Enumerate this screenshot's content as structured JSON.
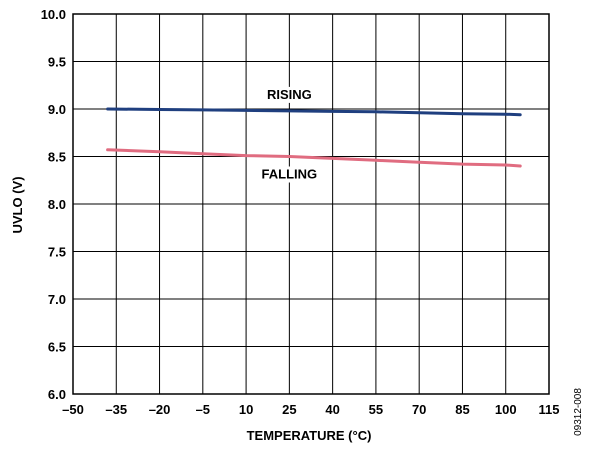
{
  "chart_data": {
    "type": "line",
    "xlabel": "TEMPERATURE (°C)",
    "ylabel": "UVLO (V)",
    "xlim": [
      -50,
      115
    ],
    "ylim": [
      6.0,
      10.0
    ],
    "x_ticks": [
      -50,
      -35,
      -20,
      -5,
      10,
      25,
      40,
      55,
      70,
      85,
      100,
      115
    ],
    "x_tick_labels": [
      "–50",
      "–35",
      "–20",
      "–5",
      "10",
      "25",
      "40",
      "55",
      "70",
      "85",
      "100",
      "115"
    ],
    "y_ticks": [
      6.0,
      6.5,
      7.0,
      7.5,
      8.0,
      8.5,
      9.0,
      9.5,
      10.0
    ],
    "y_tick_labels": [
      "6.0",
      "6.5",
      "7.0",
      "7.5",
      "8.0",
      "8.5",
      "9.0",
      "9.5",
      "10.0"
    ],
    "grid": true,
    "series": [
      {
        "name": "RISING",
        "color": "#1f3f7f",
        "x": [
          -38,
          -20,
          -5,
          10,
          25,
          40,
          55,
          70,
          85,
          100,
          105
        ],
        "y": [
          9.0,
          8.995,
          8.99,
          8.985,
          8.98,
          8.975,
          8.97,
          8.96,
          8.95,
          8.945,
          8.94
        ]
      },
      {
        "name": "FALLING",
        "color": "#e06c80",
        "x": [
          -38,
          -20,
          -5,
          10,
          25,
          40,
          55,
          70,
          85,
          100,
          105
        ],
        "y": [
          8.57,
          8.55,
          8.53,
          8.51,
          8.5,
          8.48,
          8.46,
          8.44,
          8.42,
          8.41,
          8.4
        ]
      }
    ]
  },
  "figure_id": "09312-008"
}
